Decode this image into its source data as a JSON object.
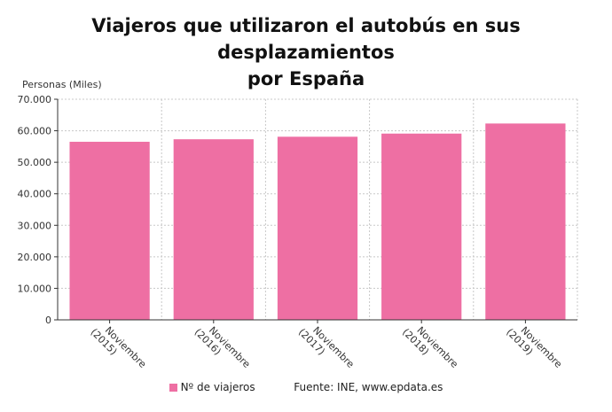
{
  "title_line1": "Viajeros que utilizaron el autobús en sus desplazamientos",
  "title_line2": "por España",
  "source": "Fuente: INE, www.epdata.es",
  "chart_data": {
    "type": "bar",
    "ylabel": "Personas (Miles)",
    "categories": [
      [
        "Noviembre",
        "(2015)"
      ],
      [
        "Noviembre",
        "(2016)"
      ],
      [
        "Noviembre",
        "(2017)"
      ],
      [
        "Noviembre",
        "(2018)"
      ],
      [
        "Noviembre",
        "(2019)"
      ]
    ],
    "series": [
      {
        "name": "Nº de viajeros",
        "color": "#ee6fa3",
        "values": [
          56500,
          57300,
          58100,
          59100,
          62300
        ]
      }
    ],
    "ylim": [
      0,
      70000
    ],
    "yticks": [
      0,
      10000,
      20000,
      30000,
      40000,
      50000,
      60000,
      70000
    ],
    "ytick_labels": [
      "0",
      "10.000",
      "20.000",
      "30.000",
      "40.000",
      "50.000",
      "60.000",
      "70.000"
    ],
    "grid": true,
    "legend_position": "bottom"
  }
}
